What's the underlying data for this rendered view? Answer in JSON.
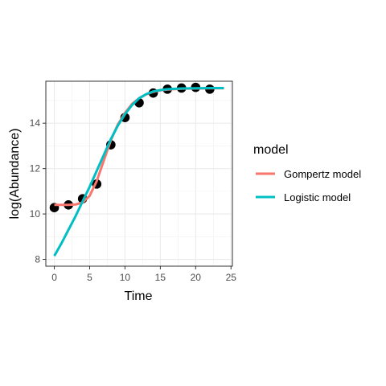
{
  "chart_data": {
    "type": "scatter",
    "title": "",
    "xlabel": "Time",
    "ylabel": "log(Abundance)",
    "xlim": [
      -1.2,
      25.2
    ],
    "ylim": [
      7.7,
      15.85
    ],
    "x_ticks": [
      0,
      5,
      10,
      15,
      20,
      25
    ],
    "x_tick_labels": [
      "0",
      "5",
      "10",
      "15",
      "20",
      "25"
    ],
    "y_ticks": [
      8,
      10,
      12,
      14
    ],
    "y_tick_labels": [
      "8",
      "10",
      "12",
      "14"
    ],
    "grid": true,
    "points": {
      "x": [
        0,
        2,
        4,
        6,
        8,
        10,
        12,
        14,
        16,
        18,
        20,
        22
      ],
      "y": [
        10.28,
        10.4,
        10.67,
        11.32,
        13.05,
        14.25,
        14.9,
        15.33,
        15.5,
        15.55,
        15.58,
        15.5
      ]
    },
    "series": [
      {
        "name": "Gompertz model",
        "color": "#F8766D",
        "x": [
          0,
          1,
          2,
          3,
          4,
          5,
          6,
          7,
          8,
          9,
          10,
          11,
          12,
          13,
          14,
          15,
          16,
          18,
          20,
          22,
          24
        ],
        "y": [
          10.4,
          10.4,
          10.4,
          10.42,
          10.5,
          10.8,
          11.45,
          12.35,
          13.25,
          13.95,
          14.45,
          14.85,
          15.1,
          15.27,
          15.38,
          15.45,
          15.48,
          15.52,
          15.53,
          15.54,
          15.54
        ]
      },
      {
        "name": "Logistic model",
        "color": "#00BFC4",
        "x": [
          0,
          1,
          2,
          3,
          4,
          5,
          6,
          7,
          8,
          9,
          10,
          11,
          12,
          13,
          14,
          15,
          16,
          18,
          20,
          22,
          24
        ],
        "y": [
          8.15,
          8.7,
          9.3,
          9.9,
          10.55,
          11.2,
          11.9,
          12.6,
          13.3,
          13.9,
          14.4,
          14.8,
          15.1,
          15.28,
          15.4,
          15.46,
          15.5,
          15.53,
          15.54,
          15.55,
          15.55
        ]
      }
    ],
    "legend": {
      "title": "model",
      "placement": "right",
      "entries": [
        "Gompertz model",
        "Logistic model"
      ]
    }
  }
}
